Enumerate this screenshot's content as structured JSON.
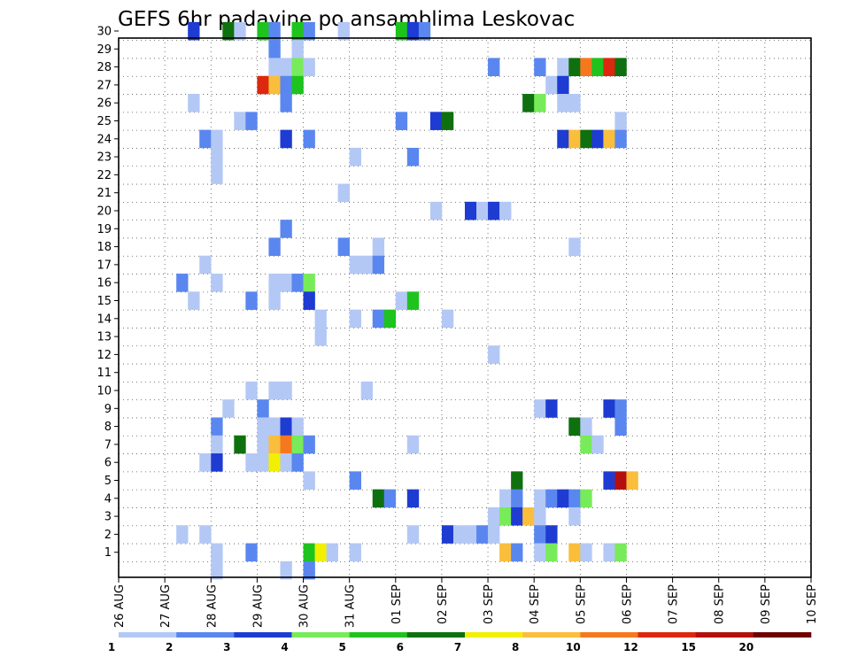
{
  "chart_data": {
    "type": "heatmap",
    "title": "GEFS 6hr padavine po ansamblima Leskovac",
    "y_ticks": [
      "1",
      "2",
      "3",
      "4",
      "5",
      "6",
      "7",
      "8",
      "9",
      "10",
      "11",
      "12",
      "13",
      "14",
      "15",
      "16",
      "17",
      "18",
      "19",
      "20",
      "21",
      "22",
      "23",
      "24",
      "25",
      "26",
      "27",
      "28",
      "29",
      "30"
    ],
    "x_ticks": [
      "26 AUG",
      "27 AUG",
      "28 AUG",
      "29 AUG",
      "30 AUG",
      "31 AUG",
      "01 SEP",
      "02 SEP",
      "03 SEP",
      "04 SEP",
      "05 SEP",
      "06 SEP",
      "07 SEP",
      "08 SEP",
      "09 SEP",
      "10 SEP"
    ],
    "x_start": "26 AUG 00Z",
    "step_hours": 6,
    "legend_labels": [
      "1",
      "2",
      "3",
      "4",
      "5",
      "6",
      "7",
      "8",
      "10",
      "12",
      "15",
      "20"
    ],
    "colors": [
      "#b4c8f5",
      "#5a87ef",
      "#1e3cd2",
      "#78eb5a",
      "#1ec31e",
      "#0f700f",
      "#f0f000",
      "#fabe3c",
      "#f5781e",
      "#dc280f",
      "#b40f0f",
      "#6e0000"
    ],
    "cells": [
      [
        6,
        30,
        3
      ],
      [
        9,
        30,
        6
      ],
      [
        10,
        30,
        1
      ],
      [
        12,
        30,
        5
      ],
      [
        13,
        30,
        2
      ],
      [
        15,
        30,
        5
      ],
      [
        16,
        30,
        2
      ],
      [
        19,
        30,
        1
      ],
      [
        24,
        30,
        5
      ],
      [
        25,
        30,
        3
      ],
      [
        26,
        30,
        2
      ],
      [
        13,
        29,
        2
      ],
      [
        15,
        29,
        1
      ],
      [
        13,
        28,
        1
      ],
      [
        14,
        28,
        1
      ],
      [
        15,
        28,
        4
      ],
      [
        16,
        28,
        1
      ],
      [
        32,
        28,
        2
      ],
      [
        36,
        28,
        2
      ],
      [
        38,
        28,
        1
      ],
      [
        39,
        28,
        6
      ],
      [
        40,
        28,
        9
      ],
      [
        41,
        28,
        5
      ],
      [
        42,
        28,
        10
      ],
      [
        43,
        28,
        6
      ],
      [
        12,
        27,
        10
      ],
      [
        13,
        27,
        8
      ],
      [
        14,
        27,
        2
      ],
      [
        15,
        27,
        5
      ],
      [
        37,
        27,
        1
      ],
      [
        38,
        27,
        3
      ],
      [
        6,
        26,
        1
      ],
      [
        14,
        26,
        2
      ],
      [
        35,
        26,
        6
      ],
      [
        36,
        26,
        4
      ],
      [
        38,
        26,
        1
      ],
      [
        39,
        26,
        1
      ],
      [
        10,
        25,
        1
      ],
      [
        11,
        25,
        2
      ],
      [
        24,
        25,
        2
      ],
      [
        27,
        25,
        3
      ],
      [
        28,
        25,
        6
      ],
      [
        43,
        25,
        1
      ],
      [
        7,
        24,
        2
      ],
      [
        8,
        24,
        1
      ],
      [
        14,
        24,
        3
      ],
      [
        16,
        24,
        2
      ],
      [
        38,
        24,
        3
      ],
      [
        39,
        24,
        8
      ],
      [
        40,
        24,
        6
      ],
      [
        41,
        24,
        3
      ],
      [
        42,
        24,
        8
      ],
      [
        43,
        24,
        2
      ],
      [
        8,
        23,
        1
      ],
      [
        20,
        23,
        1
      ],
      [
        25,
        23,
        2
      ],
      [
        8,
        22,
        1
      ],
      [
        19,
        21,
        1
      ],
      [
        27,
        20,
        1
      ],
      [
        30,
        20,
        3
      ],
      [
        31,
        20,
        1
      ],
      [
        32,
        20,
        3
      ],
      [
        33,
        20,
        1
      ],
      [
        14,
        19,
        2
      ],
      [
        13,
        18,
        2
      ],
      [
        19,
        18,
        2
      ],
      [
        22,
        18,
        1
      ],
      [
        39,
        18,
        1
      ],
      [
        7,
        17,
        1
      ],
      [
        20,
        17,
        1
      ],
      [
        21,
        17,
        1
      ],
      [
        22,
        17,
        2
      ],
      [
        5,
        16,
        2
      ],
      [
        8,
        16,
        1
      ],
      [
        13,
        16,
        1
      ],
      [
        14,
        16,
        1
      ],
      [
        15,
        16,
        2
      ],
      [
        16,
        16,
        4
      ],
      [
        6,
        15,
        1
      ],
      [
        11,
        15,
        2
      ],
      [
        13,
        15,
        1
      ],
      [
        16,
        15,
        3
      ],
      [
        24,
        15,
        1
      ],
      [
        25,
        15,
        5
      ],
      [
        17,
        14,
        1
      ],
      [
        20,
        14,
        1
      ],
      [
        22,
        14,
        2
      ],
      [
        23,
        14,
        5
      ],
      [
        28,
        14,
        1
      ],
      [
        17,
        13,
        1
      ],
      [
        32,
        12,
        1
      ],
      [
        11,
        10,
        1
      ],
      [
        13,
        10,
        1
      ],
      [
        14,
        10,
        1
      ],
      [
        21,
        10,
        1
      ],
      [
        9,
        9,
        1
      ],
      [
        12,
        9,
        2
      ],
      [
        36,
        9,
        1
      ],
      [
        37,
        9,
        3
      ],
      [
        42,
        9,
        3
      ],
      [
        43,
        9,
        2
      ],
      [
        8,
        8,
        2
      ],
      [
        12,
        8,
        1
      ],
      [
        13,
        8,
        1
      ],
      [
        14,
        8,
        3
      ],
      [
        15,
        8,
        1
      ],
      [
        39,
        8,
        6
      ],
      [
        40,
        8,
        1
      ],
      [
        43,
        8,
        2
      ],
      [
        8,
        7,
        1
      ],
      [
        10,
        7,
        6
      ],
      [
        12,
        7,
        1
      ],
      [
        13,
        7,
        8
      ],
      [
        14,
        7,
        9
      ],
      [
        15,
        7,
        4
      ],
      [
        16,
        7,
        2
      ],
      [
        25,
        7,
        1
      ],
      [
        40,
        7,
        4
      ],
      [
        41,
        7,
        1
      ],
      [
        7,
        6,
        1
      ],
      [
        8,
        6,
        3
      ],
      [
        11,
        6,
        1
      ],
      [
        12,
        6,
        1
      ],
      [
        13,
        6,
        7
      ],
      [
        14,
        6,
        1
      ],
      [
        15,
        6,
        2
      ],
      [
        16,
        5,
        1
      ],
      [
        20,
        5,
        2
      ],
      [
        34,
        5,
        6
      ],
      [
        42,
        5,
        3
      ],
      [
        43,
        5,
        11
      ],
      [
        44,
        5,
        8
      ],
      [
        22,
        4,
        6
      ],
      [
        23,
        4,
        2
      ],
      [
        25,
        4,
        3
      ],
      [
        33,
        4,
        1
      ],
      [
        34,
        4,
        2
      ],
      [
        36,
        4,
        1
      ],
      [
        37,
        4,
        2
      ],
      [
        38,
        4,
        3
      ],
      [
        39,
        4,
        2
      ],
      [
        40,
        4,
        4
      ],
      [
        32,
        3,
        1
      ],
      [
        33,
        3,
        4
      ],
      [
        34,
        3,
        3
      ],
      [
        35,
        3,
        8
      ],
      [
        36,
        3,
        1
      ],
      [
        39,
        3,
        1
      ],
      [
        5,
        2,
        1
      ],
      [
        7,
        2,
        1
      ],
      [
        25,
        2,
        1
      ],
      [
        28,
        2,
        3
      ],
      [
        29,
        2,
        1
      ],
      [
        30,
        2,
        1
      ],
      [
        31,
        2,
        2
      ],
      [
        32,
        2,
        1
      ],
      [
        36,
        2,
        2
      ],
      [
        37,
        2,
        3
      ],
      [
        8,
        1,
        1
      ],
      [
        11,
        1,
        2
      ],
      [
        16,
        1,
        5
      ],
      [
        17,
        1,
        7
      ],
      [
        18,
        1,
        1
      ],
      [
        20,
        1,
        1
      ],
      [
        33,
        1,
        8
      ],
      [
        34,
        1,
        2
      ],
      [
        36,
        1,
        1
      ],
      [
        37,
        1,
        4
      ],
      [
        39,
        1,
        8
      ],
      [
        40,
        1,
        1
      ],
      [
        42,
        1,
        1
      ],
      [
        43,
        1,
        4
      ],
      [
        8,
        0,
        1
      ],
      [
        14,
        0,
        1
      ],
      [
        16,
        0,
        2
      ]
    ]
  }
}
